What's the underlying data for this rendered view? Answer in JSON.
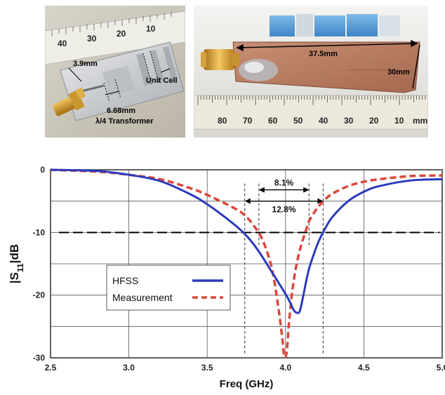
{
  "photos": {
    "left": {
      "label_width": "3.9mm",
      "label_cell": "Unit Cell",
      "label_length": "6.68mm",
      "label_transformer": "λ/4 Transformer",
      "ruler_numbers": [
        "40",
        "30",
        "20",
        "10"
      ]
    },
    "right": {
      "label_length": "37.5mm",
      "label_width": "30mm",
      "ruler_numbers": [
        "80",
        "70",
        "60",
        "50",
        "40",
        "30",
        "20",
        "10"
      ],
      "ruler_unit": "mm"
    }
  },
  "chart_data": {
    "type": "line",
    "xlabel": "Freq (GHz)",
    "ylabel_main": "|S",
    "ylabel_sub": "11",
    "ylabel_tail": "|dB",
    "xlim": [
      2.5,
      5.0
    ],
    "ylim": [
      -30,
      0
    ],
    "x_ticks": [
      2.5,
      3.0,
      3.5,
      4.0,
      4.5,
      5.0
    ],
    "x_tick_labels": [
      "2.5",
      "3.0",
      "3.5",
      "4.0",
      "4.5",
      "5.0"
    ],
    "y_ticks": [
      0,
      -10,
      -20,
      -30
    ],
    "y_tick_labels": [
      "0",
      "-10",
      "-20",
      "-30"
    ],
    "grid": true,
    "reference_line": -10,
    "series": [
      {
        "name": "HFSS",
        "color": "#2b3bbd",
        "style": "solid",
        "x": [
          2.5,
          2.8,
          3.0,
          3.2,
          3.4,
          3.5,
          3.6,
          3.7,
          3.75,
          3.8,
          3.85,
          3.9,
          3.95,
          4.0,
          4.03,
          4.05,
          4.07,
          4.09,
          4.11,
          4.13,
          4.15,
          4.18,
          4.21,
          4.25,
          4.3,
          4.4,
          4.5,
          4.6,
          4.8,
          5.0
        ],
        "y": [
          0,
          -0.2,
          -0.8,
          -1.8,
          -4.0,
          -5.5,
          -7.3,
          -9.3,
          -10.5,
          -12.0,
          -13.8,
          -15.8,
          -17.8,
          -19.8,
          -21.2,
          -22.3,
          -22.8,
          -22.6,
          -20.5,
          -18.0,
          -15.8,
          -13.5,
          -11.5,
          -9.5,
          -7.5,
          -5.0,
          -3.5,
          -2.6,
          -1.7,
          -1.5
        ]
      },
      {
        "name": "Measurement",
        "color": "#d9483b",
        "style": "dashed",
        "x": [
          2.5,
          2.8,
          3.0,
          3.2,
          3.4,
          3.5,
          3.6,
          3.7,
          3.75,
          3.8,
          3.85,
          3.9,
          3.93,
          3.96,
          3.98,
          3.99,
          4.0,
          4.01,
          4.02,
          4.04,
          4.06,
          4.08,
          4.1,
          4.13,
          4.15,
          4.2,
          4.25,
          4.3,
          4.4,
          4.5,
          4.6,
          4.8,
          5.0
        ],
        "y": [
          0,
          -0.3,
          -0.8,
          -1.5,
          -3.0,
          -4.0,
          -5.2,
          -6.5,
          -7.5,
          -9.0,
          -11.0,
          -14.5,
          -18.0,
          -23.0,
          -27.0,
          -29.5,
          -30.0,
          -28.5,
          -25.0,
          -20.0,
          -16.5,
          -14.0,
          -12.0,
          -9.7,
          -8.2,
          -6.2,
          -4.8,
          -3.8,
          -2.6,
          -1.9,
          -1.5,
          -1.0,
          -0.9
        ]
      }
    ],
    "annotations": {
      "bw_measurement": {
        "label": "8.1%",
        "x1": 3.83,
        "x2": 4.15
      },
      "bw_hfss": {
        "label": "12.8%",
        "x1": 3.74,
        "x2": 4.24
      }
    },
    "legend": "lower-left"
  }
}
